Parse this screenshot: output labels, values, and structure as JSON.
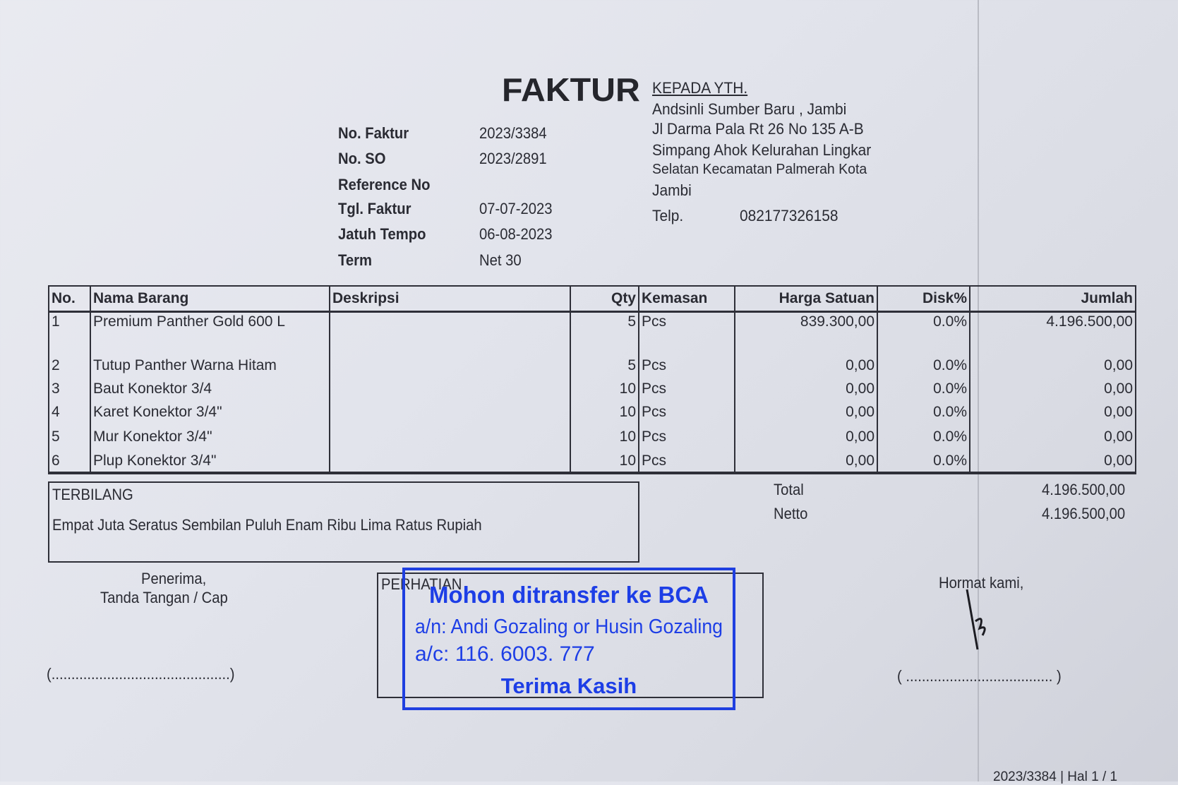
{
  "header": {
    "title": "FAKTUR"
  },
  "invoice_info": [
    {
      "label": "No. Faktur",
      "value": "2023/3384"
    },
    {
      "label": "No. SO",
      "value": "2023/2891"
    },
    {
      "label": "Reference No",
      "value": ""
    },
    {
      "label": "Tgl. Faktur",
      "value": "07-07-2023"
    },
    {
      "label": "Jatuh Tempo",
      "value": "06-08-2023"
    },
    {
      "label": "Term",
      "value": "Net 30"
    }
  ],
  "recipient": {
    "heading": "KEPADA YTH.",
    "lines": [
      "Andsinli Sumber Baru , Jambi",
      "Jl Darma Pala Rt 26 No 135 A-B",
      "Simpang Ahok Kelurahan Lingkar",
      "Selatan Kecamatan Palmerah Kota",
      "Jambi"
    ],
    "phone_label": "Telp.",
    "phone": "082177326158"
  },
  "table": {
    "headers": [
      "No.",
      "Nama Barang",
      "Deskripsi",
      "Qty",
      "Kemasan",
      "Harga Satuan",
      "Disk%",
      "Jumlah"
    ],
    "rows": [
      [
        "1",
        "Premium Panther Gold  600 L",
        "",
        "5",
        "Pcs",
        "839.300,00",
        "0.0%",
        "4.196.500,00"
      ],
      [
        "2",
        "Tutup Panther Warna Hitam",
        "",
        "5",
        "Pcs",
        "0,00",
        "0.0%",
        "0,00"
      ],
      [
        "3",
        "Baut Konektor 3/4",
        "",
        "10",
        "Pcs",
        "0,00",
        "0.0%",
        "0,00"
      ],
      [
        "4",
        "Karet Konektor 3/4\"",
        "",
        "10",
        "Pcs",
        "0,00",
        "0.0%",
        "0,00"
      ],
      [
        "5",
        "Mur Konektor 3/4\"",
        "",
        "10",
        "Pcs",
        "0,00",
        "0.0%",
        "0,00"
      ],
      [
        "6",
        "Plup Konektor 3/4\"",
        "",
        "10",
        "Pcs",
        "0,00",
        "0.0%",
        "0,00"
      ]
    ]
  },
  "terbilang": {
    "label": "TERBILANG",
    "text": "Empat Juta Seratus Sembilan Puluh Enam Ribu Lima Ratus Rupiah"
  },
  "totals": [
    {
      "label": "Total",
      "value": "4.196.500,00"
    },
    {
      "label": "Netto",
      "value": "4.196.500,00"
    }
  ],
  "signature_left": {
    "line1": "Penerima,",
    "line2": "Tanda Tangan / Cap",
    "blank": "(.............................................)"
  },
  "perhatian": {
    "label": "PERHATIAN"
  },
  "stamp": {
    "line1": "Mohon ditransfer ke BCA",
    "line2": "a/n: Andi Gozaling or Husin Gozaling",
    "line3": "a/c: 116. 6003. 777",
    "line4": "Terima Kasih",
    "color": "#1d3ee6"
  },
  "signature_right": {
    "label": "Hormat kami,",
    "blank": "( ..................................... )"
  },
  "footer": {
    "page": "2023/3384 | Hal 1 / 1"
  }
}
